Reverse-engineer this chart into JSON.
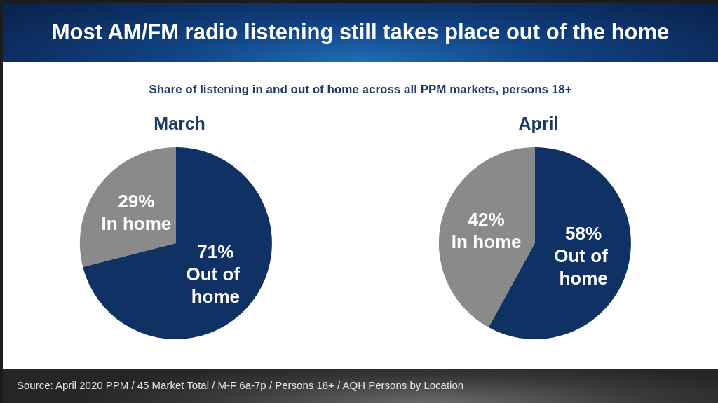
{
  "chart_data": [
    {
      "type": "other",
      "title": "Most AM/FM radio listening still takes place out of the home",
      "subtitle": "Share of listening in and out of home across all PPM markets, persons 18+",
      "annotations": [
        "Source: April 2020 PPM / 45 Market Total / M-F 6a-7p / Persons 18+ / AQH Persons by Location"
      ]
    },
    {
      "type": "pie",
      "title": "March",
      "categories": [
        "In home",
        "Out of home"
      ],
      "values": [
        29,
        71
      ],
      "value_labels": [
        "29%",
        "71%"
      ],
      "colors": [
        "#8a8a8a",
        "#0f3163"
      ]
    },
    {
      "type": "pie",
      "title": "April",
      "categories": [
        "In home",
        "Out of home"
      ],
      "values": [
        42,
        58
      ],
      "value_labels": [
        "42%",
        "58%"
      ],
      "colors": [
        "#8a8a8a",
        "#0f3163"
      ]
    }
  ]
}
